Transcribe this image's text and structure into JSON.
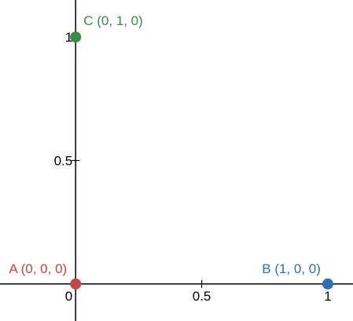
{
  "chart_data": {
    "type": "scatter",
    "title": "",
    "xlabel": "",
    "ylabel": "",
    "xlim": [
      -0.3,
      1.1
    ],
    "ylim": [
      -0.15,
      1.15
    ],
    "grid": false,
    "x_ticks": [
      {
        "value": 0,
        "label": "0"
      },
      {
        "value": 0.5,
        "label": "0.5"
      },
      {
        "value": 1,
        "label": "1"
      }
    ],
    "y_ticks": [
      {
        "value": 0.5,
        "label": "0.5"
      },
      {
        "value": 1,
        "label": "1"
      }
    ],
    "points": [
      {
        "id": "a",
        "x": 0,
        "y": 0,
        "label": "A (0, 0, 0)",
        "color": "#c74440"
      },
      {
        "id": "b",
        "x": 1,
        "y": 0,
        "label": "B (1, 0, 0)",
        "color": "#2d70b3"
      },
      {
        "id": "c",
        "x": 0,
        "y": 1,
        "label": "C (0, 1, 0)",
        "color": "#388c46"
      }
    ]
  }
}
